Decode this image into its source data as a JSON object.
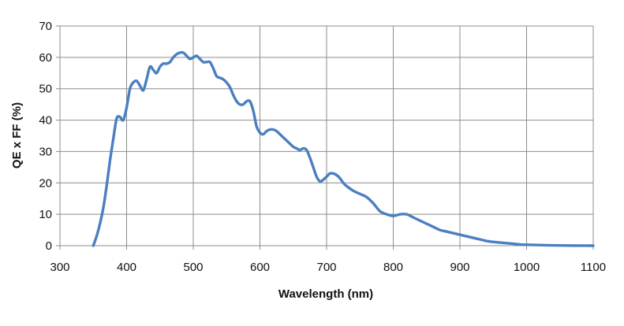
{
  "chart_data": {
    "type": "line",
    "title": "",
    "xlabel": "Wavelength (nm)",
    "ylabel": "QE x FF (%)",
    "xlim": [
      300,
      1100
    ],
    "ylim": [
      0,
      70
    ],
    "x_ticks": [
      "300",
      "400",
      "500",
      "600",
      "700",
      "800",
      "900",
      "1000",
      "1100"
    ],
    "y_ticks": [
      "0",
      "10",
      "20",
      "30",
      "40",
      "50",
      "60",
      "70"
    ],
    "grid": true,
    "legend": "none",
    "line_color": "#4a7fc1",
    "series": [
      {
        "x": [
          350,
          355,
          360,
          365,
          370,
          375,
          380,
          385,
          390,
          395,
          400,
          405,
          410,
          415,
          420,
          425,
          430,
          435,
          440,
          445,
          450,
          455,
          460,
          465,
          470,
          475,
          480,
          485,
          490,
          495,
          500,
          505,
          510,
          515,
          520,
          525,
          530,
          535,
          540,
          545,
          550,
          555,
          560,
          565,
          570,
          575,
          580,
          585,
          590,
          595,
          600,
          605,
          610,
          615,
          620,
          625,
          630,
          635,
          640,
          645,
          650,
          655,
          660,
          665,
          670,
          675,
          680,
          685,
          690,
          695,
          700,
          705,
          710,
          715,
          720,
          725,
          730,
          740,
          750,
          760,
          770,
          780,
          790,
          800,
          810,
          820,
          830,
          840,
          850,
          860,
          870,
          880,
          890,
          900,
          910,
          920,
          930,
          940,
          950,
          960,
          970,
          980,
          990,
          1000,
          1020,
          1040,
          1060,
          1080,
          1100
        ],
        "y": [
          0,
          3,
          7,
          12,
          19,
          27,
          34,
          40.5,
          41,
          40,
          44,
          50,
          52,
          52.5,
          51,
          49.5,
          53,
          57,
          56,
          55,
          57,
          58,
          58,
          58.5,
          60,
          61,
          61.5,
          61.5,
          60.5,
          59.5,
          60,
          60.5,
          59.5,
          58.5,
          58.5,
          58.5,
          56.5,
          54,
          53.5,
          53,
          52,
          50.5,
          48,
          46,
          45,
          45,
          46,
          46,
          43,
          38,
          36,
          35.5,
          36.5,
          37,
          37,
          36.5,
          35.5,
          34.5,
          33.5,
          32.5,
          31.5,
          31,
          30.5,
          31,
          30.5,
          28,
          25,
          22,
          20.5,
          21,
          22,
          23,
          23,
          22.5,
          21.5,
          20,
          19,
          17.5,
          16.5,
          15.5,
          13.5,
          11,
          10,
          9.5,
          10,
          10,
          9,
          8,
          7,
          6,
          5,
          4.5,
          4,
          3.5,
          3,
          2.5,
          2,
          1.5,
          1.2,
          1,
          0.8,
          0.6,
          0.4,
          0.3,
          0.2,
          0.1,
          0.05,
          0.02,
          0
        ]
      }
    ]
  }
}
